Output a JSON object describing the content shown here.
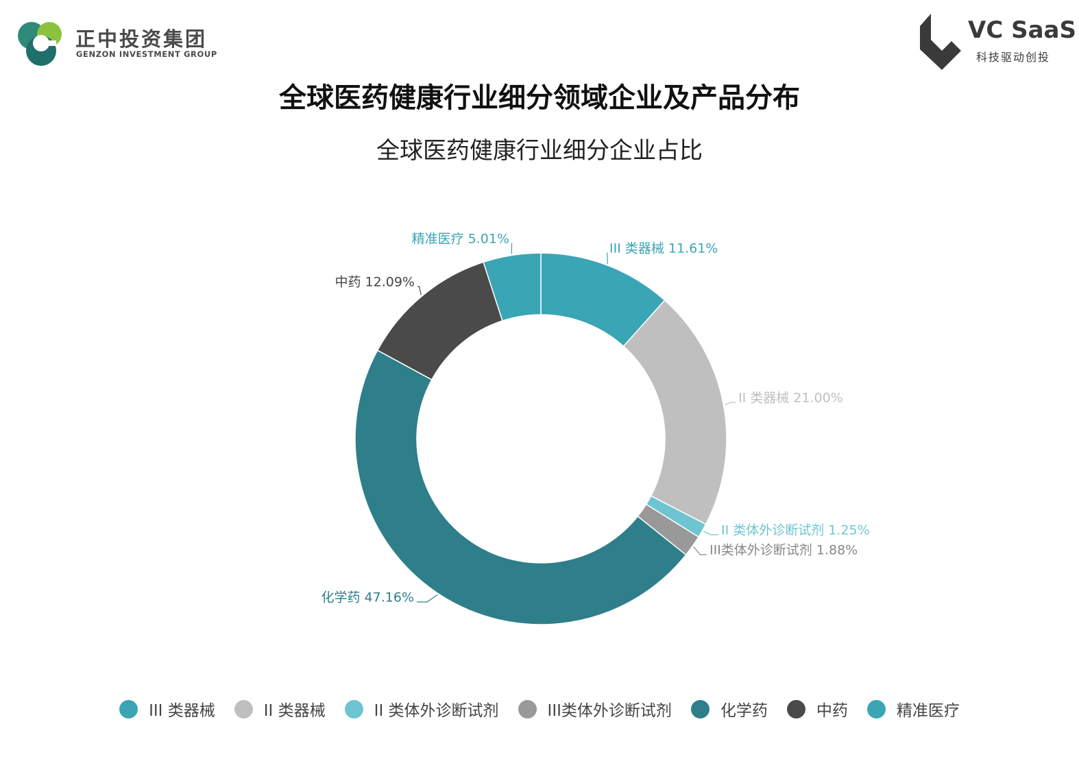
{
  "header": {
    "logo_left": {
      "name": "正中投资集团",
      "sub": "GENZON INVESTMENT GROUP"
    },
    "logo_right": {
      "name": "VC SaaS",
      "sub": "科技驱动创投"
    }
  },
  "main_title": "全球医药健康行业细分领域企业及产品分布",
  "chart_data": {
    "type": "pie",
    "title": "全球医药健康行业细分企业占比",
    "donut": true,
    "legend_position": "bottom",
    "categories": [
      "III 类器械",
      "II 类器械",
      "II 类体外诊断试剂",
      "III类体外诊断试剂",
      "化学药",
      "中药",
      "精准医疗"
    ],
    "values": [
      11.61,
      21.0,
      1.25,
      1.88,
      47.16,
      12.09,
      5.01
    ],
    "colors": [
      "#3aa5b4",
      "#bfbfbf",
      "#6ec5d1",
      "#999999",
      "#2e7f8a",
      "#4a4a4a",
      "#3aa5b4"
    ],
    "data_labels": [
      "III 类器械 11.61%",
      "II 类器械 21.00%",
      "II 类体外诊断试剂 1.25%",
      "III类体外诊断试剂 1.88%",
      "化学药 47.16%",
      "中药 12.09%",
      "精准医疗 5.01%"
    ]
  }
}
